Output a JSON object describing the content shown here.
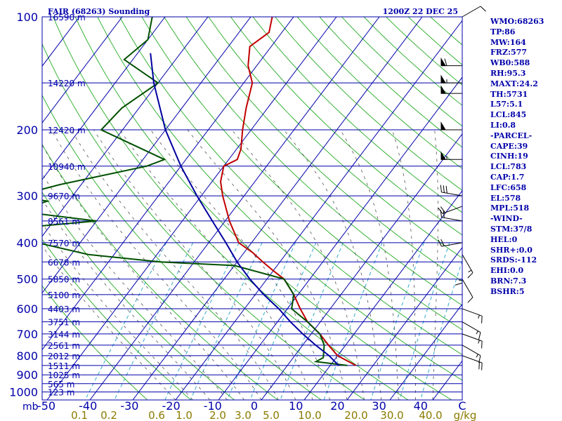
{
  "chart_data": {
    "type": "skew-t log-p sounding",
    "title_left": "FAIR (68263) Sounding",
    "title_right": "1200Z 22 DEC 25",
    "pressure_ticks": [
      100,
      200,
      300,
      400,
      500,
      600,
      700,
      800,
      900,
      1000
    ],
    "pressure_range_mb": [
      1050,
      100
    ],
    "temp_ticks": [
      -50,
      -40,
      -30,
      -20,
      -10,
      0,
      10,
      20,
      30,
      40,
      "C"
    ],
    "temp_unit_left": "mb",
    "mixing_ratio_ticks": [
      "0.1",
      "0.2",
      "0.6",
      "1.0",
      "2.0",
      "3.0",
      "5.0",
      "10.0",
      "20.0",
      "30.0",
      "40.0",
      "g/kg"
    ],
    "height_levels": [
      {
        "p": 100,
        "label": "16590 m"
      },
      {
        "p": 150,
        "label": "14220 m"
      },
      {
        "p": 200,
        "label": "12420 m"
      },
      {
        "p": 250,
        "label": "10940 m"
      },
      {
        "p": 300,
        "label": "9670 m"
      },
      {
        "p": 350,
        "label": "8561 m"
      },
      {
        "p": 400,
        "label": "7570 m"
      },
      {
        "p": 450,
        "label": "6678 m"
      },
      {
        "p": 500,
        "label": "5850 m"
      },
      {
        "p": 550,
        "label": "5100 m"
      },
      {
        "p": 600,
        "label": "4403 m"
      },
      {
        "p": 650,
        "label": "3751 m"
      },
      {
        "p": 700,
        "label": "3144 m"
      },
      {
        "p": 750,
        "label": "2561 m"
      },
      {
        "p": 800,
        "label": "2012 m"
      },
      {
        "p": 850,
        "label": "1511 m"
      },
      {
        "p": 900,
        "label": "1025 m"
      },
      {
        "p": 950,
        "label": "565 m"
      },
      {
        "p": 1000,
        "label": "123 m"
      }
    ],
    "series": [
      {
        "name": "temperature",
        "color": "#c00000",
        "points": [
          [
            100,
            -65
          ],
          [
            110,
            -63
          ],
          [
            120,
            -65
          ],
          [
            135,
            -62
          ],
          [
            150,
            -58
          ],
          [
            175,
            -55
          ],
          [
            200,
            -52
          ],
          [
            225,
            -49
          ],
          [
            240,
            -48
          ],
          [
            250,
            -50
          ],
          [
            275,
            -48
          ],
          [
            300,
            -45
          ],
          [
            350,
            -39
          ],
          [
            400,
            -33
          ],
          [
            425,
            -28
          ],
          [
            450,
            -24
          ],
          [
            475,
            -20
          ],
          [
            500,
            -16
          ],
          [
            550,
            -11
          ],
          [
            600,
            -7
          ],
          [
            650,
            -3
          ],
          [
            700,
            2
          ],
          [
            750,
            6
          ],
          [
            800,
            10
          ],
          [
            850,
            16
          ]
        ]
      },
      {
        "name": "dewpoint",
        "color": "#005000",
        "points": [
          [
            100,
            -93
          ],
          [
            115,
            -90
          ],
          [
            130,
            -92
          ],
          [
            150,
            -80
          ],
          [
            175,
            -84
          ],
          [
            200,
            -85
          ],
          [
            240,
            -65
          ],
          [
            250,
            -68
          ],
          [
            280,
            -85
          ],
          [
            300,
            -93
          ],
          [
            310,
            -85
          ],
          [
            330,
            -90
          ],
          [
            350,
            -70
          ],
          [
            375,
            -97
          ],
          [
            400,
            -80
          ],
          [
            430,
            -66
          ],
          [
            450,
            -48
          ],
          [
            460,
            -30
          ],
          [
            500,
            -16
          ],
          [
            550,
            -11
          ],
          [
            600,
            -9
          ],
          [
            650,
            -3
          ],
          [
            700,
            2
          ],
          [
            750,
            5
          ],
          [
            810,
            7
          ],
          [
            830,
            6
          ],
          [
            850,
            14
          ]
        ]
      },
      {
        "name": "parcel",
        "color": "#0000a0",
        "points": [
          [
            125,
            -87
          ],
          [
            150,
            -81
          ],
          [
            200,
            -70
          ],
          [
            250,
            -60
          ],
          [
            300,
            -51
          ],
          [
            350,
            -43
          ],
          [
            400,
            -36
          ],
          [
            450,
            -30
          ],
          [
            500,
            -24
          ],
          [
            550,
            -18
          ],
          [
            600,
            -12
          ],
          [
            650,
            -7
          ],
          [
            700,
            -2
          ],
          [
            750,
            3
          ],
          [
            800,
            8
          ],
          [
            850,
            12
          ]
        ]
      }
    ],
    "wind_barbs": [
      {
        "p": 100,
        "dir": 60,
        "spd": 10
      },
      {
        "p": 135,
        "dir": 270,
        "spd": 60
      },
      {
        "p": 150,
        "dir": 270,
        "spd": 55
      },
      {
        "p": 160,
        "dir": 270,
        "spd": 50
      },
      {
        "p": 200,
        "dir": 270,
        "spd": 50
      },
      {
        "p": 240,
        "dir": 270,
        "spd": 55
      },
      {
        "p": 300,
        "dir": 280,
        "spd": 30
      },
      {
        "p": 320,
        "dir": 250,
        "spd": 20
      },
      {
        "p": 350,
        "dir": 280,
        "spd": 20
      },
      {
        "p": 400,
        "dir": 260,
        "spd": 20
      },
      {
        "p": 430,
        "dir": 150,
        "spd": 15
      },
      {
        "p": 450,
        "dir": 180,
        "spd": 15
      },
      {
        "p": 500,
        "dir": 150,
        "spd": 10
      },
      {
        "p": 600,
        "dir": 110,
        "spd": 15
      },
      {
        "p": 650,
        "dir": 120,
        "spd": 15
      },
      {
        "p": 700,
        "dir": 110,
        "spd": 15
      },
      {
        "p": 750,
        "dir": 120,
        "spd": 15
      },
      {
        "p": 800,
        "dir": 110,
        "spd": 20
      }
    ],
    "indices": [
      "WMO:68263",
      "TP:86",
      "MW:164",
      "FRZ:577",
      "WB0:588",
      "RH:95.3",
      "MAXT:24.2",
      "TH:5731",
      "L57:5.1",
      "LCL:845",
      "LI:0.8",
      "-PARCEL-",
      "CAPE:39",
      "CINH:19",
      "LCL:783",
      "CAP:1.7",
      "LFC:658",
      "EL:578",
      "MPL:518",
      "-WIND-",
      "STM:37/8",
      "HEL:0",
      "SHR+:0.0",
      "SRDS:-112",
      "EHI:0.0",
      "BRN:7.3",
      "BSHR:5"
    ],
    "colors": {
      "background": "#ffffff",
      "isobar": "#0000aa",
      "isotherm": "#0000aa",
      "dry_adiabat": "#22aa22",
      "mixing_ratio": "#33aacc",
      "moist_adiabat": "#555555",
      "label": "#0000aa",
      "mixing_label": "#8a7a00"
    }
  }
}
